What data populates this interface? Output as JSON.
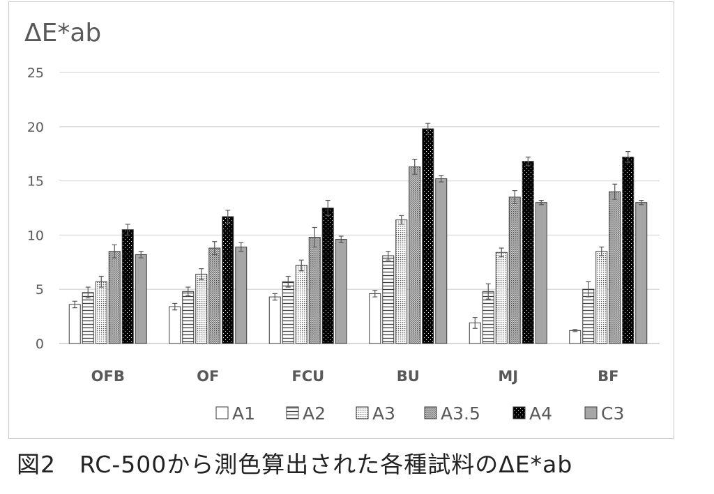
{
  "caption": "図2　RC-500から測色算出された各種試料のΔE*ab",
  "chart_data": {
    "type": "bar",
    "title": "ΔE*ab",
    "xlabel": "",
    "ylabel": "",
    "ylim": [
      0,
      25
    ],
    "yticks": [
      0,
      5,
      10,
      15,
      20,
      25
    ],
    "grid": true,
    "legend_position": "bottom",
    "categories": [
      "OFB",
      "OF",
      "FCU",
      "BU",
      "MJ",
      "BF"
    ],
    "series": [
      {
        "name": "A1",
        "pattern": "white",
        "values": [
          3.6,
          3.4,
          4.3,
          4.6,
          1.9,
          1.2
        ],
        "errors": [
          0.3,
          0.3,
          0.3,
          0.3,
          0.5,
          0.1
        ]
      },
      {
        "name": "A2",
        "pattern": "horizontal",
        "values": [
          4.7,
          4.8,
          5.7,
          8.1,
          4.8,
          5.0
        ],
        "errors": [
          0.5,
          0.4,
          0.5,
          0.4,
          0.7,
          0.7
        ]
      },
      {
        "name": "A3",
        "pattern": "fine-dots",
        "values": [
          5.7,
          6.4,
          7.2,
          11.4,
          8.4,
          8.5
        ],
        "errors": [
          0.5,
          0.5,
          0.5,
          0.4,
          0.4,
          0.4
        ]
      },
      {
        "name": "A3.5",
        "pattern": "grid-dots",
        "values": [
          8.5,
          8.8,
          9.8,
          16.3,
          13.5,
          14.0
        ],
        "errors": [
          0.6,
          0.6,
          0.9,
          0.7,
          0.6,
          0.7
        ]
      },
      {
        "name": "A4",
        "pattern": "black-dots",
        "values": [
          10.5,
          11.7,
          12.5,
          19.8,
          16.8,
          17.2
        ],
        "errors": [
          0.5,
          0.6,
          0.7,
          0.5,
          0.4,
          0.5
        ]
      },
      {
        "name": "C3",
        "pattern": "gray",
        "values": [
          8.2,
          8.9,
          9.6,
          15.2,
          13.0,
          13.0
        ],
        "errors": [
          0.3,
          0.4,
          0.3,
          0.3,
          0.2,
          0.2
        ]
      }
    ],
    "colors": {
      "gridline": "#d9d9d9",
      "bar_outline": "#3a3a3a",
      "gray_fill": "#a6a6a6",
      "error_bar": "#555555",
      "text": "#595959"
    }
  }
}
